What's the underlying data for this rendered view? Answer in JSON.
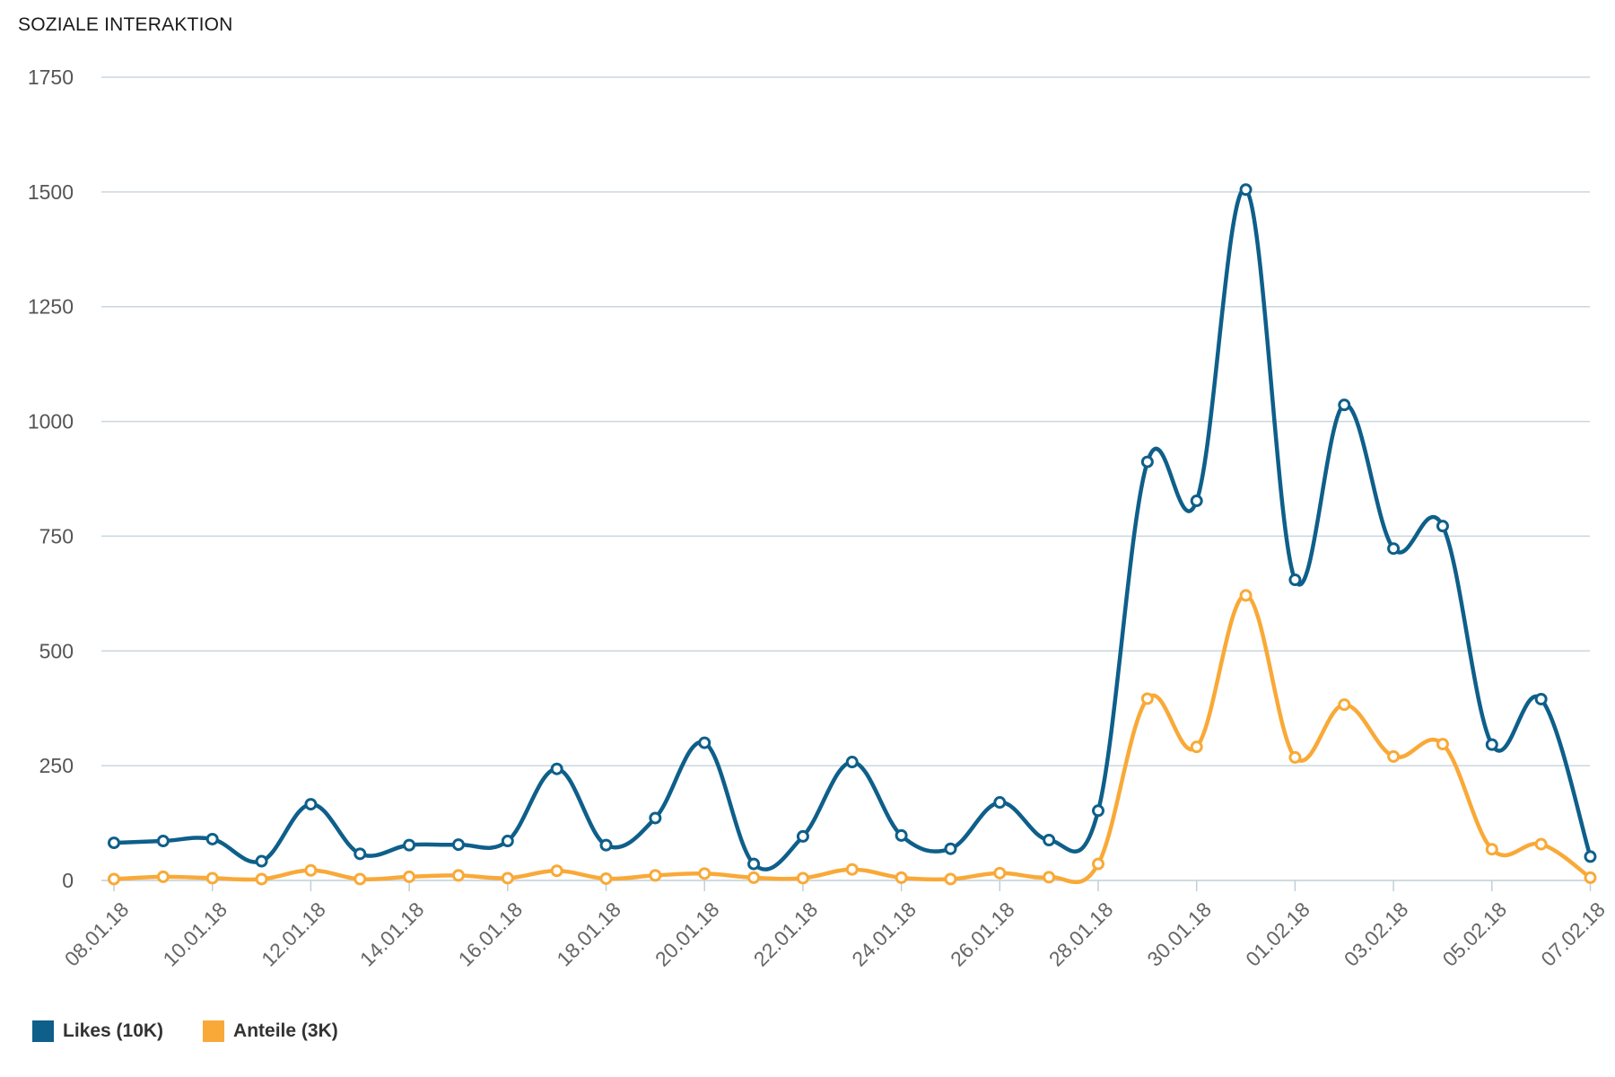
{
  "chart_data": {
    "type": "line",
    "title": "SOZIALE INTERAKTION",
    "xlabel": "",
    "ylabel": "",
    "ylim": [
      0,
      1750
    ],
    "yticks": [
      "0",
      "250",
      "500",
      "750",
      "1000",
      "1250",
      "1500",
      "1750"
    ],
    "xtick_labels": [
      "08.01.18",
      "10.01.18",
      "12.01.18",
      "14.01.18",
      "16.01.18",
      "18.01.18",
      "20.01.18",
      "22.01.18",
      "24.01.18",
      "26.01.18",
      "28.01.18",
      "30.01.18",
      "01.02.18",
      "03.02.18",
      "05.02.18",
      "07.02.18"
    ],
    "x": [
      "08.01.18",
      "09.01.18",
      "10.01.18",
      "11.01.18",
      "12.01.18",
      "13.01.18",
      "14.01.18",
      "15.01.18",
      "16.01.18",
      "17.01.18",
      "18.01.18",
      "19.01.18",
      "20.01.18",
      "21.01.18",
      "22.01.18",
      "23.01.18",
      "24.01.18",
      "25.01.18",
      "26.01.18",
      "27.01.18",
      "28.01.18",
      "29.01.18",
      "30.01.18",
      "31.01.18",
      "01.02.18",
      "02.02.18",
      "03.02.18",
      "04.02.18",
      "05.02.18",
      "06.02.18",
      "07.02.18"
    ],
    "grid": true,
    "legend_position": "bottom-left",
    "series": [
      {
        "name": "Likes (10K)",
        "color": "#0e5f8a",
        "values": [
          82,
          86,
          90,
          42,
          166,
          58,
          77,
          78,
          86,
          243,
          77,
          136,
          300,
          36,
          96,
          258,
          98,
          69,
          170,
          88,
          152,
          912,
          827,
          1505,
          655,
          1036,
          723,
          772,
          296,
          395,
          52
        ]
      },
      {
        "name": "Anteile (3K)",
        "color": "#f9a937",
        "values": [
          3,
          8,
          5,
          3,
          22,
          3,
          8,
          11,
          5,
          21,
          4,
          11,
          15,
          6,
          5,
          24,
          6,
          3,
          16,
          7,
          36,
          396,
          291,
          621,
          268,
          383,
          270,
          297,
          68,
          79,
          6
        ]
      }
    ]
  }
}
